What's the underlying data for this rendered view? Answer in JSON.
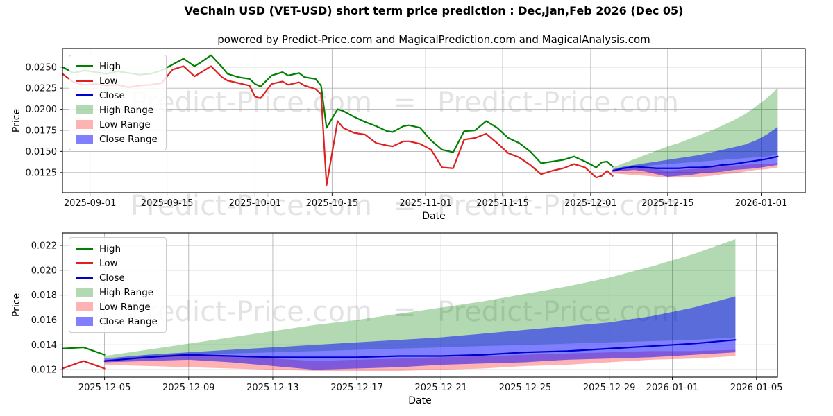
{
  "title": "VeChain USD (VET-USD) short term price prediction : Dec,Jan,Feb 2026 (Dec 05)",
  "subtitle": "powered by Predict-Price.com and MagicalPrediction.com and MagicalAnalysis.com",
  "watermark": {
    "text": "Predict-Price.com",
    "separator": "="
  },
  "colors": {
    "high": "#008000",
    "low": "#df2020",
    "close": "#0000cd",
    "high_range": "rgba(0,128,0,0.30)",
    "low_range": "rgba(255,0,0,0.30)",
    "close_range": "rgba(0,0,255,0.50)",
    "grid": "#b4b4b4",
    "spine": "#000000",
    "watermark": "rgba(0,0,0,0.11)"
  },
  "legend": {
    "items": [
      {
        "label": "High",
        "swatch": "line",
        "color": "#008000"
      },
      {
        "label": "Low",
        "swatch": "line",
        "color": "#df2020"
      },
      {
        "label": "Close",
        "swatch": "line",
        "color": "#0000cd"
      },
      {
        "label": "High Range",
        "swatch": "patch",
        "color": "rgba(0,128,0,0.30)"
      },
      {
        "label": "Low Range",
        "swatch": "patch",
        "color": "rgba(255,0,0,0.30)"
      },
      {
        "label": "Close Range",
        "swatch": "patch",
        "color": "rgba(0,0,255,0.50)"
      }
    ]
  },
  "chart_data": [
    {
      "name": "history-and-forecast",
      "type": "line",
      "xlabel": "Date",
      "ylabel": "Price",
      "grid": true,
      "legend_position": "upper-left",
      "xlim": [
        "2025-08-27",
        "2026-01-09"
      ],
      "ylim": [
        0.0101,
        0.0272
      ],
      "xticks": [
        "2025-09-01",
        "2025-09-15",
        "2025-10-01",
        "2025-10-15",
        "2025-11-01",
        "2025-11-15",
        "2025-12-01",
        "2025-12-15",
        "2026-01-01"
      ],
      "yticks": [
        0.0125,
        0.015,
        0.0175,
        0.02,
        0.0225,
        0.025
      ],
      "ytick_labels": [
        "0.0125",
        "0.0150",
        "0.0175",
        "0.0200",
        "0.0225",
        "0.0250"
      ],
      "x_hist": [
        "2025-08-27",
        "2025-08-29",
        "2025-08-31",
        "2025-09-02",
        "2025-09-04",
        "2025-09-06",
        "2025-09-08",
        "2025-09-10",
        "2025-09-12",
        "2025-09-14",
        "2025-09-16",
        "2025-09-18",
        "2025-09-20",
        "2025-09-21",
        "2025-09-23",
        "2025-09-25",
        "2025-09-26",
        "2025-09-28",
        "2025-09-30",
        "2025-10-01",
        "2025-10-02",
        "2025-10-04",
        "2025-10-06",
        "2025-10-07",
        "2025-10-09",
        "2025-10-10",
        "2025-10-12",
        "2025-10-13",
        "2025-10-14",
        "2025-10-16",
        "2025-10-17",
        "2025-10-19",
        "2025-10-21",
        "2025-10-23",
        "2025-10-25",
        "2025-10-26",
        "2025-10-28",
        "2025-10-29",
        "2025-10-31",
        "2025-11-02",
        "2025-11-04",
        "2025-11-06",
        "2025-11-08",
        "2025-11-10",
        "2025-11-12",
        "2025-11-14",
        "2025-11-16",
        "2025-11-18",
        "2025-11-20",
        "2025-11-22",
        "2025-11-24",
        "2025-11-26",
        "2025-11-28",
        "2025-11-30",
        "2025-12-02",
        "2025-12-03",
        "2025-12-04",
        "2025-12-05"
      ],
      "x_pred": [
        "2025-12-05",
        "2025-12-07",
        "2025-12-09",
        "2025-12-11",
        "2025-12-13",
        "2025-12-15",
        "2025-12-17",
        "2025-12-19",
        "2025-12-21",
        "2025-12-23",
        "2025-12-25",
        "2025-12-27",
        "2025-12-29",
        "2025-12-31",
        "2026-01-02",
        "2026-01-04"
      ],
      "series": [
        {
          "name": "High Range",
          "kind": "band",
          "xref": "x_pred",
          "color": "rgba(0,128,0,0.30)",
          "upper": [
            0.0131,
            0.0136,
            0.0141,
            0.0146,
            0.0151,
            0.0156,
            0.016,
            0.0165,
            0.017,
            0.0175,
            0.0181,
            0.0187,
            0.0194,
            0.0203,
            0.0213,
            0.0225
          ],
          "lower": [
            0.0129,
            0.013,
            0.0132,
            0.0133,
            0.0134,
            0.0135,
            0.0136,
            0.0137,
            0.0138,
            0.0139,
            0.014,
            0.0141,
            0.0142,
            0.0143,
            0.0144,
            0.0146
          ]
        },
        {
          "name": "Low Range",
          "kind": "band",
          "xref": "x_pred",
          "color": "rgba(255,0,0,0.30)",
          "upper": [
            0.0128,
            0.0131,
            0.0133,
            0.0131,
            0.0129,
            0.0127,
            0.0128,
            0.0129,
            0.013,
            0.0131,
            0.0132,
            0.0133,
            0.0134,
            0.0135,
            0.0135,
            0.0136
          ],
          "lower": [
            0.0124,
            0.0123,
            0.0122,
            0.0121,
            0.012,
            0.0119,
            0.0119,
            0.0119,
            0.012,
            0.0121,
            0.0123,
            0.0124,
            0.0126,
            0.0128,
            0.0129,
            0.0131
          ]
        },
        {
          "name": "Close Range",
          "kind": "band",
          "xref": "x_pred",
          "color": "rgba(0,0,255,0.50)",
          "upper": [
            0.0129,
            0.0132,
            0.0134,
            0.0136,
            0.0138,
            0.014,
            0.0142,
            0.0144,
            0.0146,
            0.0149,
            0.0152,
            0.0155,
            0.0158,
            0.0163,
            0.017,
            0.0179
          ],
          "lower": [
            0.0126,
            0.0127,
            0.0128,
            0.0126,
            0.0123,
            0.012,
            0.0121,
            0.0122,
            0.0124,
            0.0125,
            0.0126,
            0.0128,
            0.0129,
            0.013,
            0.0132,
            0.0134
          ]
        },
        {
          "name": "High",
          "kind": "line",
          "xref": "x_hist",
          "color": "#008000",
          "y": [
            0.025,
            0.0243,
            0.0246,
            0.0244,
            0.0242,
            0.0245,
            0.0243,
            0.0241,
            0.0242,
            0.0246,
            0.0253,
            0.026,
            0.0251,
            0.0255,
            0.0264,
            0.025,
            0.0242,
            0.0238,
            0.0236,
            0.023,
            0.0227,
            0.024,
            0.0244,
            0.024,
            0.0243,
            0.0238,
            0.0236,
            0.0228,
            0.0178,
            0.02,
            0.0198,
            0.0191,
            0.0185,
            0.018,
            0.0174,
            0.0173,
            0.018,
            0.0181,
            0.0178,
            0.0163,
            0.0152,
            0.0149,
            0.0174,
            0.0175,
            0.0186,
            0.0178,
            0.0166,
            0.016,
            0.015,
            0.0136,
            0.0138,
            0.014,
            0.0144,
            0.0138,
            0.0131,
            0.0137,
            0.0138,
            0.0132
          ]
        },
        {
          "name": "Low",
          "kind": "line",
          "xref": "x_hist",
          "color": "#df2020",
          "y": [
            0.0242,
            0.0232,
            0.0229,
            0.023,
            0.0228,
            0.0229,
            0.0226,
            0.0228,
            0.0229,
            0.0231,
            0.0247,
            0.0251,
            0.0239,
            0.0243,
            0.0251,
            0.0238,
            0.0234,
            0.0231,
            0.0228,
            0.0215,
            0.0213,
            0.023,
            0.0233,
            0.0229,
            0.0232,
            0.0228,
            0.0224,
            0.0218,
            0.011,
            0.0186,
            0.0178,
            0.0172,
            0.017,
            0.016,
            0.0157,
            0.0156,
            0.0162,
            0.0162,
            0.0159,
            0.0152,
            0.0131,
            0.013,
            0.0164,
            0.0166,
            0.0171,
            0.016,
            0.0148,
            0.0143,
            0.0134,
            0.0123,
            0.0127,
            0.013,
            0.0135,
            0.0131,
            0.0119,
            0.0121,
            0.0127,
            0.0121
          ]
        },
        {
          "name": "Close",
          "kind": "line",
          "xref": "x_pred",
          "color": "#0000cd",
          "y": [
            0.0127,
            0.013,
            0.0132,
            0.0131,
            0.013,
            0.013,
            0.013,
            0.0131,
            0.0131,
            0.0132,
            0.0134,
            0.0135,
            0.0137,
            0.0139,
            0.0141,
            0.0144
          ]
        }
      ]
    },
    {
      "name": "forecast-detail",
      "type": "line",
      "xlabel": "Date",
      "ylabel": "Price",
      "grid": true,
      "legend_position": "upper-left",
      "xlim": [
        "2025-12-03",
        "2026-01-06"
      ],
      "ylim": [
        0.0114,
        0.023
      ],
      "xticks": [
        "2025-12-05",
        "2025-12-09",
        "2025-12-13",
        "2025-12-17",
        "2025-12-21",
        "2025-12-25",
        "2025-12-29",
        "2026-01-01",
        "2026-01-05"
      ],
      "yticks": [
        0.012,
        0.014,
        0.016,
        0.018,
        0.02,
        0.022
      ],
      "ytick_labels": [
        "0.012",
        "0.014",
        "0.016",
        "0.018",
        "0.020",
        "0.022"
      ],
      "x_hist": [
        "2025-12-03",
        "2025-12-04",
        "2025-12-05"
      ],
      "x_pred": [
        "2025-12-05",
        "2025-12-07",
        "2025-12-09",
        "2025-12-11",
        "2025-12-13",
        "2025-12-15",
        "2025-12-17",
        "2025-12-19",
        "2025-12-21",
        "2025-12-23",
        "2025-12-25",
        "2025-12-27",
        "2025-12-29",
        "2025-12-31",
        "2026-01-02",
        "2026-01-04"
      ],
      "series": [
        {
          "name": "High Range",
          "kind": "band",
          "xref": "x_pred",
          "color": "rgba(0,128,0,0.30)",
          "upper": [
            0.0131,
            0.0136,
            0.0141,
            0.0146,
            0.0151,
            0.0156,
            0.016,
            0.0165,
            0.017,
            0.0175,
            0.0181,
            0.0187,
            0.0194,
            0.0203,
            0.0213,
            0.0225
          ],
          "lower": [
            0.0129,
            0.013,
            0.0132,
            0.0133,
            0.0134,
            0.0135,
            0.0136,
            0.0137,
            0.0138,
            0.0139,
            0.014,
            0.0141,
            0.0142,
            0.0143,
            0.0144,
            0.0146
          ]
        },
        {
          "name": "Low Range",
          "kind": "band",
          "xref": "x_pred",
          "color": "rgba(255,0,0,0.30)",
          "upper": [
            0.0128,
            0.0131,
            0.0133,
            0.0131,
            0.0129,
            0.0127,
            0.0128,
            0.0129,
            0.013,
            0.0131,
            0.0132,
            0.0133,
            0.0134,
            0.0135,
            0.0135,
            0.0136
          ],
          "lower": [
            0.0124,
            0.0123,
            0.0122,
            0.0121,
            0.012,
            0.0119,
            0.0119,
            0.0119,
            0.012,
            0.0121,
            0.0123,
            0.0124,
            0.0126,
            0.0128,
            0.0129,
            0.0131
          ]
        },
        {
          "name": "Close Range",
          "kind": "band",
          "xref": "x_pred",
          "color": "rgba(0,0,255,0.50)",
          "upper": [
            0.0129,
            0.0132,
            0.0134,
            0.0136,
            0.0138,
            0.014,
            0.0142,
            0.0144,
            0.0146,
            0.0149,
            0.0152,
            0.0155,
            0.0158,
            0.0163,
            0.017,
            0.0179
          ],
          "lower": [
            0.0126,
            0.0127,
            0.0128,
            0.0126,
            0.0123,
            0.012,
            0.0121,
            0.0122,
            0.0124,
            0.0125,
            0.0126,
            0.0128,
            0.0129,
            0.013,
            0.0132,
            0.0134
          ]
        },
        {
          "name": "High",
          "kind": "line",
          "xref": "x_hist",
          "color": "#008000",
          "y": [
            0.0137,
            0.0138,
            0.0132
          ]
        },
        {
          "name": "Low",
          "kind": "line",
          "xref": "x_hist",
          "color": "#df2020",
          "y": [
            0.0121,
            0.0127,
            0.0121
          ]
        },
        {
          "name": "Close",
          "kind": "line",
          "xref": "x_pred",
          "color": "#0000cd",
          "y": [
            0.0127,
            0.013,
            0.0132,
            0.0131,
            0.013,
            0.013,
            0.013,
            0.0131,
            0.0131,
            0.0132,
            0.0134,
            0.0135,
            0.0137,
            0.0139,
            0.0141,
            0.0144
          ]
        }
      ]
    }
  ]
}
